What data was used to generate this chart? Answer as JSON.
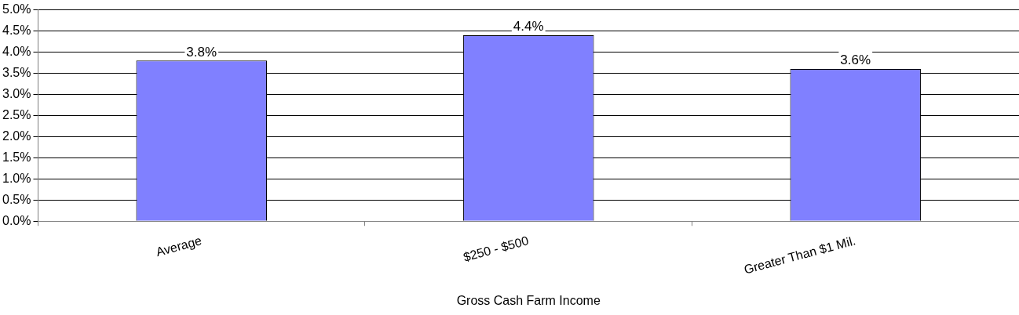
{
  "chart_data": {
    "type": "bar",
    "xlabel": "Gross Cash Farm Income",
    "categories": [
      "Average",
      "$250 - $500",
      "Greater Than $1 Mil."
    ],
    "values": [
      3.8,
      4.4,
      3.6
    ],
    "value_labels": [
      "3.8%",
      "4.4%",
      "3.6%"
    ],
    "color": "#8080ff",
    "ylim": [
      0,
      5
    ],
    "yticks": [
      {
        "value": 0,
        "label": "0.0%"
      },
      {
        "value": 0.5,
        "label": "0.5%"
      },
      {
        "value": 1,
        "label": "1.0%"
      },
      {
        "value": 1.5,
        "label": "1.5%"
      },
      {
        "value": 2,
        "label": "2.0%"
      },
      {
        "value": 2.5,
        "label": "2.5%"
      },
      {
        "value": 3,
        "label": "3.0%"
      },
      {
        "value": 3.5,
        "label": "3.5%"
      },
      {
        "value": 4,
        "label": "4.0%"
      },
      {
        "value": 4.5,
        "label": "4.5%"
      },
      {
        "value": 5,
        "label": "5.0%"
      }
    ],
    "grid": "y"
  }
}
